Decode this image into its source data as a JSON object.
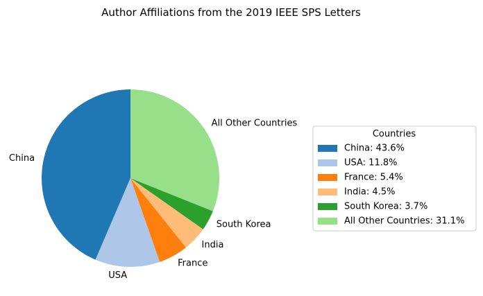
{
  "chart_data": {
    "type": "pie",
    "title": "Author Affiliations from the 2019 IEEE SPS Letters",
    "legend_title": "Countries",
    "legend_placement": "right",
    "start_angle": "90 degrees, counter-clockwise",
    "slices": [
      {
        "label": "China",
        "value": 43.6,
        "color": "#1f77b4",
        "legend": "China: 43.6%"
      },
      {
        "label": "USA",
        "value": 11.8,
        "color": "#aec7e8",
        "legend": "USA: 11.8%"
      },
      {
        "label": "France",
        "value": 5.4,
        "color": "#ff7f0e",
        "legend": "France: 5.4%"
      },
      {
        "label": "India",
        "value": 4.5,
        "color": "#ffbb78",
        "legend": "India: 4.5%"
      },
      {
        "label": "South Korea",
        "value": 3.7,
        "color": "#2ca02c",
        "legend": "South Korea: 3.7%"
      },
      {
        "label": "All Other Countries",
        "value": 31.1,
        "color": "#98df8a",
        "legend": "All Other Countries: 31.1%"
      }
    ]
  }
}
